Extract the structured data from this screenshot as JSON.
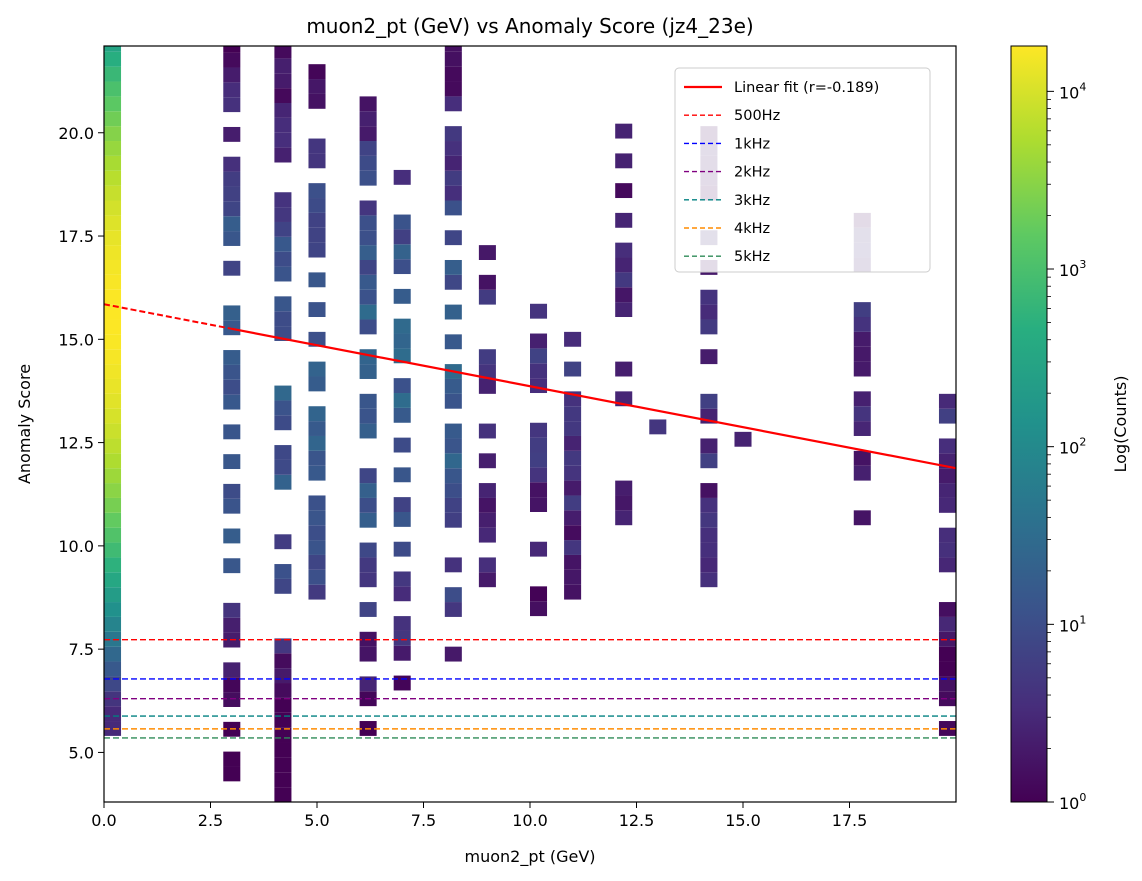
{
  "chart_data": {
    "type": "heatmap",
    "title": "muon2_pt (GeV) vs Anomaly Score (jz4_23e)",
    "xlabel": "muon2_pt (GeV)",
    "ylabel": "Anomaly Score",
    "xlim": [
      0.0,
      20.0
    ],
    "ylim": [
      3.8,
      22.1
    ],
    "x_ticks": [
      0.0,
      2.5,
      5.0,
      7.5,
      10.0,
      12.5,
      15.0,
      17.5
    ],
    "x_tick_labels": [
      "0.0",
      "2.5",
      "5.0",
      "7.5",
      "10.0",
      "12.5",
      "15.0",
      "17.5"
    ],
    "y_ticks": [
      5.0,
      7.5,
      10.0,
      12.5,
      15.0,
      17.5,
      20.0
    ],
    "y_tick_labels": [
      "5.0",
      "7.5",
      "10.0",
      "12.5",
      "15.0",
      "17.5",
      "20.0"
    ],
    "grid": false,
    "colormap": "viridis",
    "colorbar": {
      "label": "Log(Counts)",
      "scale": "log",
      "range": [
        1,
        18000
      ],
      "ticks": [
        {
          "value": 1,
          "base": "10",
          "exp": "0"
        },
        {
          "value": 10,
          "base": "10",
          "exp": "1"
        },
        {
          "value": 100,
          "base": "10",
          "exp": "2"
        },
        {
          "value": 1000,
          "base": "10",
          "exp": "3"
        },
        {
          "value": 10000,
          "base": "10",
          "exp": "4"
        }
      ]
    },
    "bin_width_x": 0.4,
    "bin_height_y": 0.36,
    "columns": [
      {
        "x": 0.2,
        "y_range": [
          5.4,
          22.1
        ],
        "profile": "dense"
      },
      {
        "x": 3.0,
        "y_min": 4.3,
        "y_max": 22.1
      },
      {
        "x": 4.2,
        "y_min": 3.8,
        "y_max": 22.1
      },
      {
        "x": 5.0,
        "y_min": 8.7,
        "y_max": 21.6
      },
      {
        "x": 6.2,
        "y_min": 5.4,
        "y_max": 20.6
      },
      {
        "x": 7.0,
        "y_min": 6.5,
        "y_max": 18.8
      },
      {
        "x": 8.2,
        "y_min": 7.2,
        "y_max": 22.1
      },
      {
        "x": 9.0,
        "y_min": 9.0,
        "y_max": 17.0
      },
      {
        "x": 10.2,
        "y_min": 8.3,
        "y_max": 15.8
      },
      {
        "x": 11.0,
        "y_min": 8.7,
        "y_max": 15.0
      },
      {
        "x": 12.2,
        "y_min": 10.5,
        "y_max": 20.1
      },
      {
        "x": 13.0,
        "y_min": 12.7,
        "y_max": 12.7
      },
      {
        "x": 14.2,
        "y_min": 9.0,
        "y_max": 20.1
      },
      {
        "x": 15.0,
        "y_min": 12.4,
        "y_max": 12.4
      },
      {
        "x": 17.8,
        "y_min": 10.5,
        "y_max": 17.9
      },
      {
        "x": 19.8,
        "y_min": 5.4,
        "y_max": 13.5
      }
    ],
    "fit_line": {
      "name": "Linear fit (r=-0.189)",
      "color": "#ff0000",
      "x": [
        0.0,
        20.0
      ],
      "y": [
        15.85,
        11.88
      ],
      "dashed_until_x": 3.0
    },
    "thresholds": [
      {
        "name": "500Hz",
        "y": 7.73,
        "color": "#ff0000"
      },
      {
        "name": "1kHz",
        "y": 6.78,
        "color": "#0000ff"
      },
      {
        "name": "2kHz",
        "y": 6.3,
        "color": "#800080"
      },
      {
        "name": "3kHz",
        "y": 5.88,
        "color": "#008080"
      },
      {
        "name": "4kHz",
        "y": 5.57,
        "color": "#ff8c00"
      },
      {
        "name": "5kHz",
        "y": 5.35,
        "color": "#2e8b57"
      }
    ],
    "legend_position": "top-right"
  }
}
